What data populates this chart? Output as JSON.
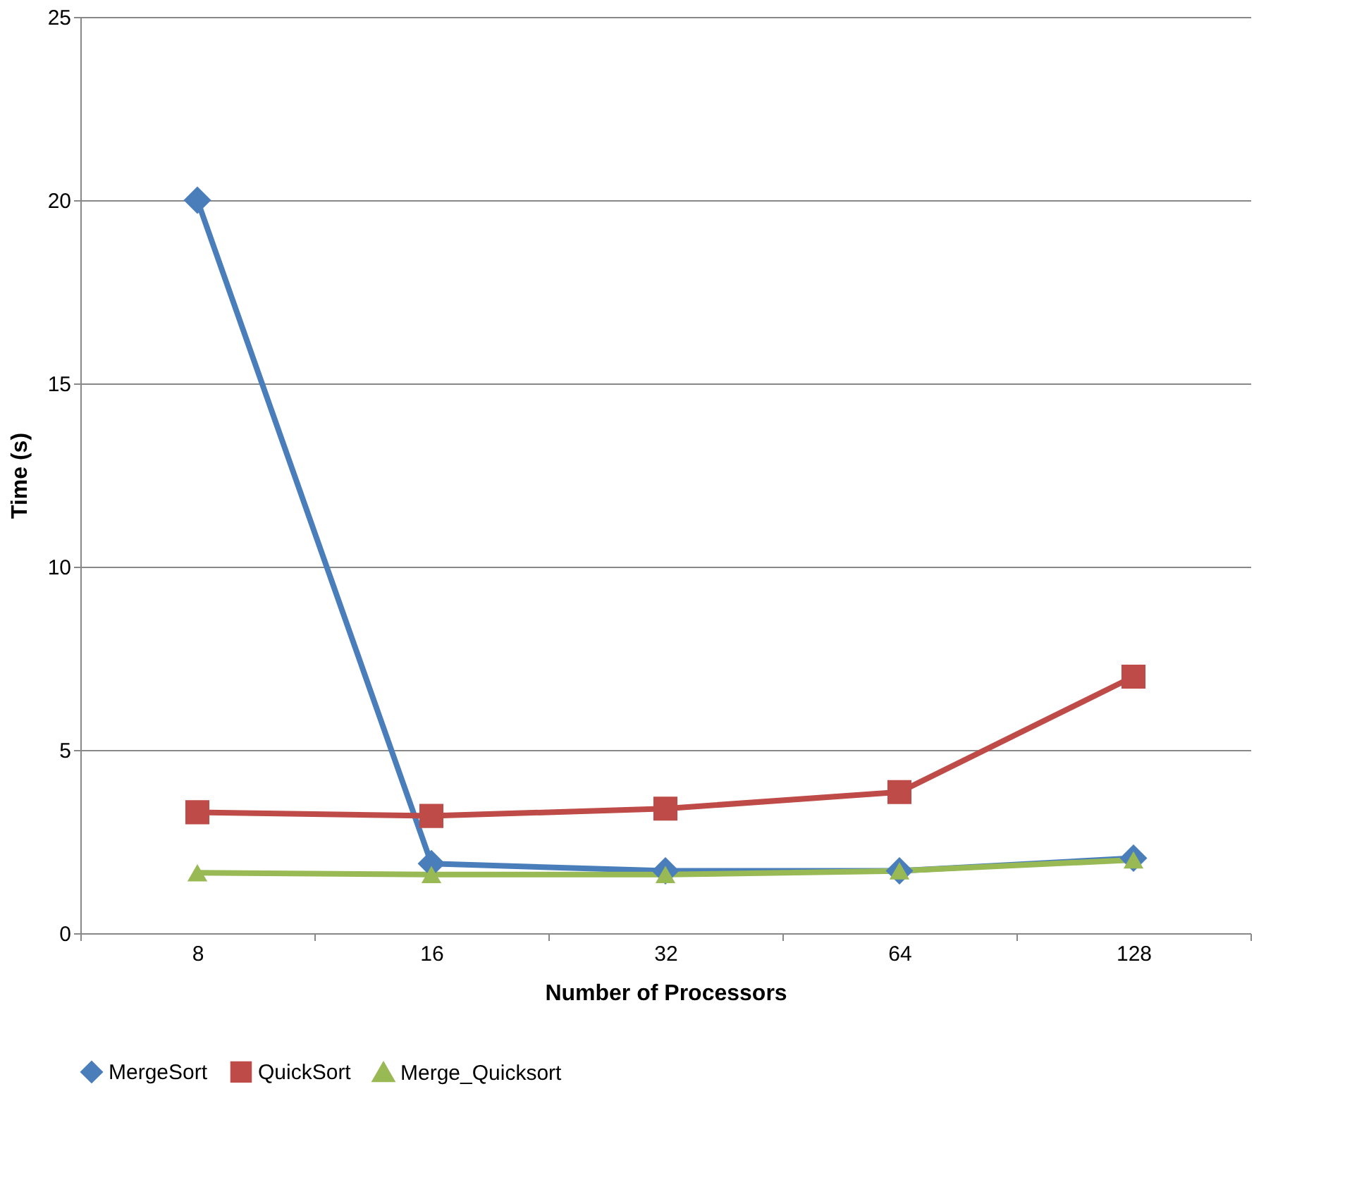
{
  "chart_data": {
    "type": "line",
    "xlabel": "Number of Processors",
    "ylabel": "Time (s)",
    "categories": [
      "8",
      "16",
      "32",
      "64",
      "128"
    ],
    "ylim": [
      0,
      25
    ],
    "yticks": [
      0,
      5,
      10,
      15,
      20,
      25
    ],
    "grid": "y",
    "legend": "bottom",
    "line_style": "solid",
    "series": [
      {
        "name": "MergeSort",
        "color": "#4a7ebb",
        "marker": "diamond",
        "values": [
          20,
          1.9,
          1.7,
          1.7,
          2.05
        ]
      },
      {
        "name": "QuickSort",
        "color": "#be4b48",
        "marker": "square",
        "values": [
          3.3,
          3.2,
          3.4,
          3.85,
          7.0
        ]
      },
      {
        "name": "Merge_Quicksort",
        "color": "#98b954",
        "marker": "triangle",
        "values": [
          1.65,
          1.6,
          1.6,
          1.7,
          2.0
        ]
      }
    ]
  }
}
